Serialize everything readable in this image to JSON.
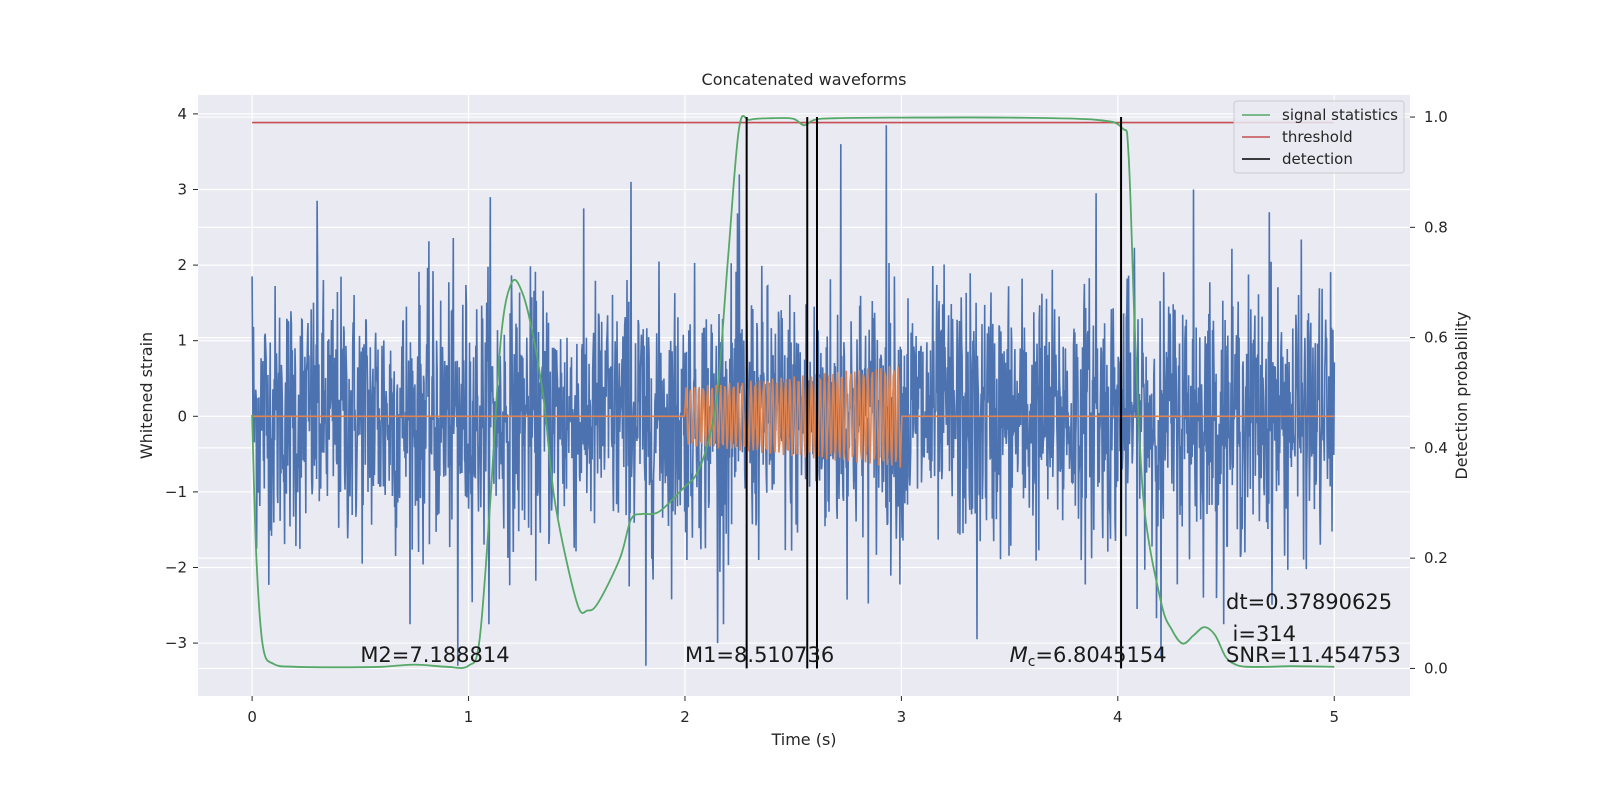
{
  "chart_data": {
    "type": "line",
    "title": "Concatenated waveforms",
    "xlabel": "Time (s)",
    "ylabel": "Whitened strain",
    "y2label": "Detection probability",
    "xlim": [
      -0.25,
      5.35
    ],
    "ylim": [
      -3.7,
      4.25
    ],
    "y2lim": [
      -0.05,
      1.04
    ],
    "xticks": [
      0,
      1,
      2,
      3,
      4,
      5
    ],
    "yticks": [
      -3,
      -2,
      -1,
      0,
      1,
      2,
      3,
      4
    ],
    "y2ticks": [
      0.0,
      0.2,
      0.4,
      0.6,
      0.8,
      1.0
    ],
    "grid": true,
    "legend_position": "top-right",
    "colors": {
      "background": "#eaeaf2",
      "noise": "#4c72b0",
      "injection": "#dd8452",
      "statistics": "#55a868",
      "threshold": "#c44e52",
      "detection": "#000000",
      "grid": "#ffffff"
    },
    "series": [
      {
        "name": "",
        "role": "whitened-noise",
        "axis": "left",
        "x_range": [
          0,
          5
        ],
        "amplitude": 2.2,
        "peaks": [
          {
            "x": 0.0,
            "y": 1.85
          },
          {
            "x": 0.3,
            "y": 2.85
          },
          {
            "x": 0.95,
            "y": -3.3
          },
          {
            "x": 1.1,
            "y": 2.9
          },
          {
            "x": 1.82,
            "y": -3.3
          },
          {
            "x": 1.75,
            "y": 3.1
          },
          {
            "x": 2.25,
            "y": 3.2
          },
          {
            "x": 2.72,
            "y": 3.6
          },
          {
            "x": 2.93,
            "y": 3.85
          },
          {
            "x": 3.35,
            "y": -2.95
          },
          {
            "x": 4.35,
            "y": 3.0
          },
          {
            "x": 4.7,
            "y": 2.7
          },
          {
            "x": 4.2,
            "y": -3.2
          },
          {
            "x": 2.15,
            "y": -3.0
          },
          {
            "x": 3.9,
            "y": 2.95
          }
        ]
      },
      {
        "name": "",
        "role": "injected-waveform",
        "axis": "left",
        "x_range": [
          0,
          5
        ],
        "signal_start": 2.0,
        "signal_end": 3.0,
        "amplitude_start": 0.38,
        "amplitude_end": 0.68,
        "cycles": 50
      },
      {
        "name": "signal statistics",
        "axis": "right",
        "x": [
          0,
          0.02,
          0.05,
          0.1,
          0.2,
          0.4,
          0.6,
          0.75,
          0.9,
          1.0,
          1.05,
          1.1,
          1.15,
          1.2,
          1.25,
          1.3,
          1.35,
          1.4,
          1.5,
          1.55,
          1.6,
          1.7,
          1.75,
          1.8,
          1.85,
          1.9,
          2.0,
          2.05,
          2.1,
          2.15,
          2.2,
          2.25,
          2.3,
          2.4,
          2.5,
          2.55,
          2.6,
          2.7,
          3.0,
          3.5,
          3.9,
          4.02,
          4.05,
          4.08,
          4.12,
          4.2,
          4.25,
          4.3,
          4.35,
          4.4,
          4.45,
          4.5,
          4.55,
          4.6,
          4.7,
          4.8,
          5.0
        ],
        "y": [
          0.46,
          0.2,
          0.04,
          0.008,
          0.003,
          0.002,
          0.003,
          0.007,
          0.003,
          0.005,
          0.05,
          0.3,
          0.6,
          0.7,
          0.68,
          0.6,
          0.48,
          0.3,
          0.12,
          0.105,
          0.12,
          0.2,
          0.27,
          0.28,
          0.28,
          0.29,
          0.33,
          0.35,
          0.4,
          0.5,
          0.75,
          0.98,
          0.995,
          0.998,
          0.997,
          0.985,
          0.995,
          0.998,
          0.999,
          0.999,
          0.995,
          0.98,
          0.93,
          0.6,
          0.3,
          0.12,
          0.07,
          0.045,
          0.06,
          0.075,
          0.06,
          0.02,
          0.006,
          0.003,
          0.003,
          0.004,
          0.003
        ]
      },
      {
        "name": "threshold",
        "axis": "right",
        "x": [
          0,
          5
        ],
        "y": [
          0.99,
          0.99
        ]
      },
      {
        "name": "detection",
        "axis": "right",
        "type": "vlines",
        "x": [
          2.285,
          2.565,
          2.61,
          4.015
        ],
        "ymin": 0,
        "ymax": 1.0
      }
    ],
    "annotations": [
      {
        "id": "m2",
        "text": "M2=7.188814",
        "x": 0.5,
        "y": -3.25
      },
      {
        "id": "m1",
        "text": "M1=8.510736",
        "x": 2.0,
        "y": -3.25
      },
      {
        "id": "mc",
        "text": "=6.8045154",
        "prefix_italic": "M",
        "prefix_sub": "c",
        "x": 3.5,
        "y": -3.25
      },
      {
        "id": "dt",
        "text": "dt=0.37890625",
        "x": 4.5,
        "y": -2.55
      },
      {
        "id": "idx",
        "text": "i=314",
        "x": 4.53,
        "y": -2.97
      },
      {
        "id": "snr",
        "text": "SNR=11.454753",
        "x": 4.5,
        "y": -3.25
      }
    ],
    "legend": [
      "signal statistics",
      "threshold",
      "detection"
    ]
  }
}
